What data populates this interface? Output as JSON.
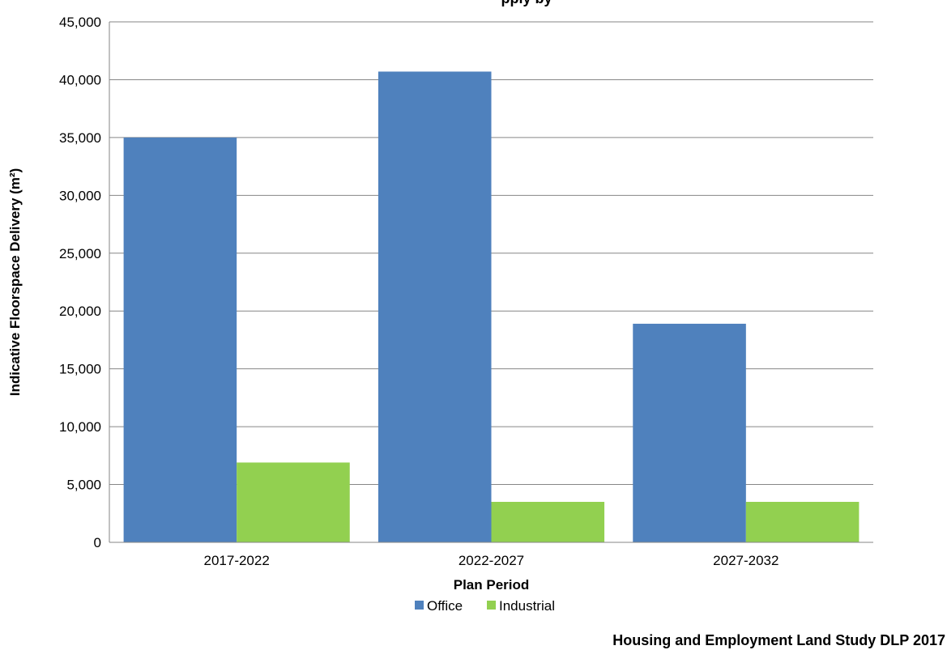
{
  "chart_data": {
    "type": "bar",
    "title": "",
    "xlabel": "Plan Period",
    "ylabel": "Indicative Floorspace Delivery (m²)",
    "categories": [
      "2017-2022",
      "2022-2027",
      "2027-2032"
    ],
    "series": [
      {
        "name": "Office",
        "values": [
          35000,
          40700,
          18900
        ],
        "color": "#4f81bd"
      },
      {
        "name": "Industrial",
        "values": [
          6900,
          3500,
          3500
        ],
        "color": "#92d050"
      }
    ],
    "ylim": [
      0,
      45000
    ],
    "yticks": [
      0,
      5000,
      10000,
      15000,
      20000,
      25000,
      30000,
      35000,
      40000,
      45000
    ],
    "ytick_labels": [
      "0",
      "5,000",
      "10,000",
      "15,000",
      "20,000",
      "25,000",
      "30,000",
      "35,000",
      "40,000",
      "45,000"
    ],
    "grid": true,
    "legend_position": "bottom"
  },
  "source_note": "Housing and Employment Land Study DLP 2017"
}
